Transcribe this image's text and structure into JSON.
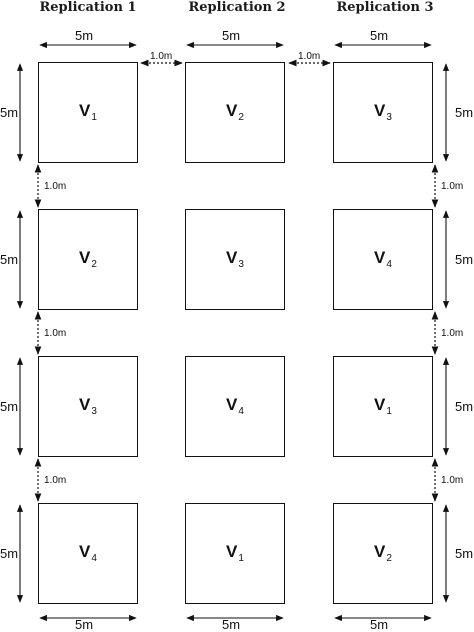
{
  "replications": [
    "Replication 1",
    "Replication 2",
    "Replication 3"
  ],
  "grid": [
    [
      {
        "v": "V",
        "sub": "1"
      },
      {
        "v": "V",
        "sub": "2"
      },
      {
        "v": "V",
        "sub": "3"
      }
    ],
    [
      {
        "v": "V",
        "sub": "2"
      },
      {
        "v": "V",
        "sub": "3"
      },
      {
        "v": "V",
        "sub": "4"
      }
    ],
    [
      {
        "v": "V",
        "sub": "3"
      },
      {
        "v": "V",
        "sub": "4"
      },
      {
        "v": "V",
        "sub": "1"
      }
    ],
    [
      {
        "v": "V",
        "sub": "4"
      },
      {
        "v": "V",
        "sub": "1"
      },
      {
        "v": "V",
        "sub": "2"
      }
    ]
  ],
  "plot_size_label": "5m",
  "gap_label": "1.0m",
  "colors": {
    "stroke": "#111111",
    "background": "#ffffff"
  }
}
